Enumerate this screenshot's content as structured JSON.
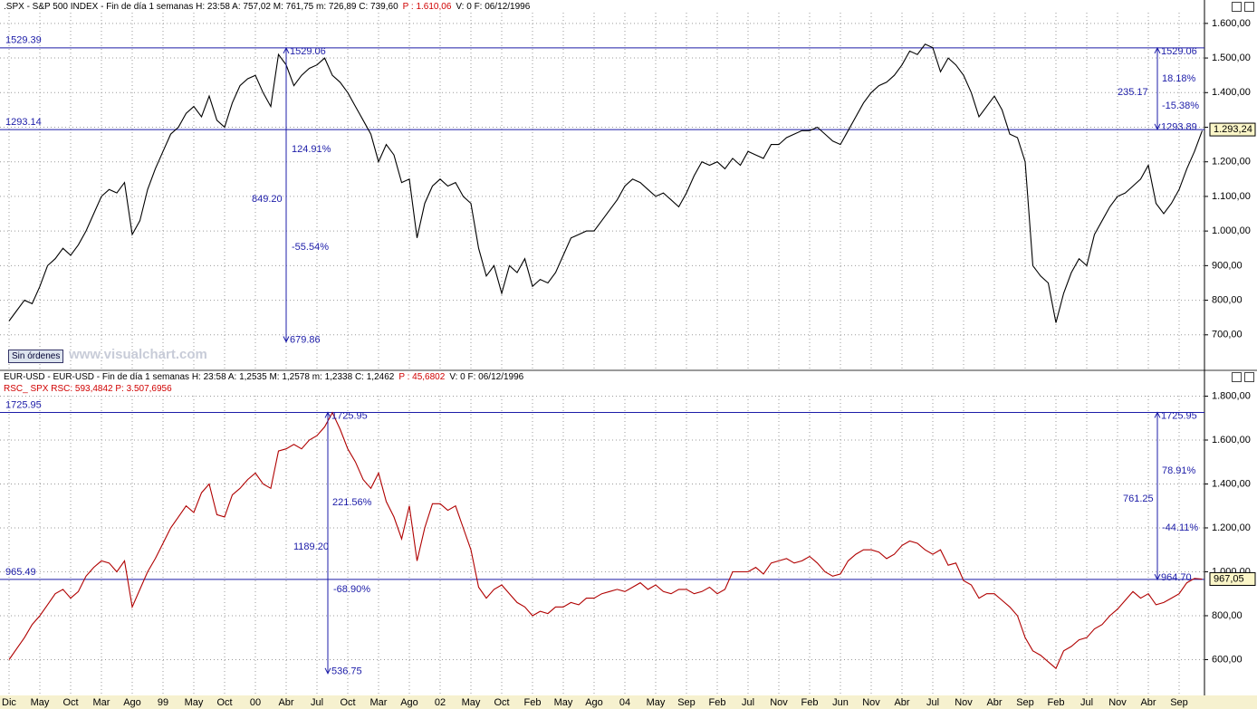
{
  "chart_data": {
    "type": "line",
    "categories": [
      "Dic",
      null,
      null,
      null,
      "May",
      null,
      null,
      null,
      "Oct",
      null,
      null,
      null,
      "Mar",
      null,
      null,
      null,
      "Ago",
      null,
      null,
      null,
      "99",
      null,
      null,
      null,
      "May",
      null,
      null,
      null,
      "Oct",
      null,
      null,
      null,
      "00",
      null,
      null,
      null,
      "Abr",
      null,
      null,
      null,
      "Jul",
      null,
      null,
      null,
      "Oct",
      null,
      null,
      null,
      "Mar",
      null,
      null,
      null,
      "Ago",
      null,
      null,
      null,
      "02",
      null,
      null,
      null,
      "May",
      null,
      null,
      null,
      "Oct",
      null,
      null,
      null,
      "Feb",
      null,
      null,
      null,
      "May",
      null,
      null,
      null,
      "Ago",
      null,
      null,
      null,
      "04",
      null,
      null,
      null,
      "May",
      null,
      null,
      null,
      "Sep",
      null,
      null,
      null,
      "Feb",
      null,
      null,
      null,
      "Jul",
      null,
      null,
      null,
      "Nov",
      null,
      null,
      null,
      "Feb",
      null,
      null,
      null,
      "Jun",
      null,
      null,
      null,
      "Nov",
      null,
      null,
      null,
      "Abr",
      null,
      null,
      null,
      "Jul",
      null,
      null,
      null,
      "Nov",
      null,
      null,
      null,
      "Abr",
      null,
      null,
      null,
      "Sep",
      null,
      null,
      null,
      "Feb",
      null,
      null,
      null,
      "Jul",
      null,
      null,
      null,
      "Nov",
      null,
      null,
      null,
      "Abr",
      null,
      null,
      null,
      "Sep",
      null,
      null,
      null
    ],
    "grid": true,
    "panels": [
      {
        "header": [
          [
            {
              "text": ".SPX - S&P 500 INDEX - Fin de día 1 semanas H: 23:58 A: 757,02 M: 761,75 m: 726,89 C: 739,60",
              "color": "#000000"
            },
            {
              "text": "P : 1.610,06",
              "color": "#d00000"
            },
            {
              "text": "V: 0 F: 06/12/1996",
              "color": "#000000"
            }
          ]
        ],
        "ylim": [
          600,
          1631
        ],
        "yticks": [
          {
            "value": 700,
            "label": "700,00"
          },
          {
            "value": 800,
            "label": "800,00"
          },
          {
            "value": 900,
            "label": "900,00"
          },
          {
            "value": 1000,
            "label": "1.000,00"
          },
          {
            "value": 1100,
            "label": "1.100,00"
          },
          {
            "value": 1200,
            "label": "1.200,00"
          },
          {
            "value": 1300,
            "label": "1.300,00"
          },
          {
            "value": 1400,
            "label": "1.400,00"
          },
          {
            "value": 1500,
            "label": "1.500,00"
          },
          {
            "value": 1600,
            "label": "1.600,00"
          }
        ],
        "series": [
          {
            "name": ".SPX",
            "color": "#000000",
            "values": [
              740,
              770,
              800,
              790,
              840,
              900,
              920,
              950,
              930,
              960,
              1000,
              1050,
              1100,
              1120,
              1110,
              1140,
              990,
              1030,
              1120,
              1180,
              1230,
              1280,
              1300,
              1340,
              1360,
              1330,
              1390,
              1320,
              1300,
              1370,
              1420,
              1440,
              1450,
              1400,
              1360,
              1510,
              1480,
              1420,
              1450,
              1470,
              1480,
              1500,
              1450,
              1430,
              1400,
              1360,
              1320,
              1280,
              1200,
              1250,
              1220,
              1140,
              1150,
              980,
              1080,
              1130,
              1150,
              1130,
              1140,
              1100,
              1080,
              950,
              870,
              900,
              820,
              900,
              880,
              920,
              840,
              860,
              850,
              880,
              930,
              980,
              990,
              1000,
              1000,
              1030,
              1060,
              1090,
              1130,
              1150,
              1140,
              1120,
              1100,
              1110,
              1090,
              1070,
              1110,
              1160,
              1200,
              1190,
              1200,
              1180,
              1210,
              1190,
              1230,
              1220,
              1210,
              1250,
              1250,
              1270,
              1280,
              1290,
              1290,
              1300,
              1280,
              1260,
              1250,
              1290,
              1330,
              1370,
              1400,
              1420,
              1430,
              1450,
              1480,
              1520,
              1510,
              1540,
              1530,
              1460,
              1500,
              1480,
              1450,
              1400,
              1330,
              1360,
              1390,
              1350,
              1280,
              1270,
              1200,
              900,
              870,
              850,
              735,
              820,
              880,
              920,
              900,
              990,
              1030,
              1070,
              1100,
              1110,
              1130,
              1150,
              1190,
              1080,
              1050,
              1080,
              1120,
              1180,
              1230,
              1290
            ]
          }
        ],
        "hlines": [
          {
            "value": 1529.39,
            "label": "1529.39"
          },
          {
            "value": 1293.14,
            "label": "1293.14"
          }
        ],
        "measures": [
          {
            "top": {
              "value": 1529.06,
              "label": "1529.06"
            },
            "bottom": {
              "value": 679.86,
              "label": "679.86"
            },
            "texts": [
              "124.91%",
              "849.20",
              "-55.54%"
            ]
          },
          {
            "top": {
              "value": 1529.06,
              "label": "1529.06"
            },
            "bottom": {
              "value": 1293.89,
              "label": "1293.89"
            },
            "texts": [
              "18.18%",
              "235.17",
              "-15.38%"
            ]
          }
        ],
        "last": {
          "value": 1293.24,
          "label": "1.293,24"
        }
      },
      {
        "header": [
          [
            {
              "text": "EUR-USD - EUR-USD - Fin de día 1 semanas H: 23:58 A: 1,2535 M: 1,2578 m: 1,2338 C: 1,2462",
              "color": "#000000"
            },
            {
              "text": "P : 45,6802",
              "color": "#d00000"
            },
            {
              "text": "V: 0 F: 06/12/1996",
              "color": "#000000"
            }
          ],
          [
            {
              "text": "RSC_ SPX RSC: 593,4842 P: 3.507,6956",
              "color": "#d00000"
            }
          ]
        ],
        "ylim": [
          437,
          1802
        ],
        "yticks": [
          {
            "value": 600,
            "label": "600,00"
          },
          {
            "value": 800,
            "label": "800,00"
          },
          {
            "value": 1000,
            "label": "1.000,00"
          },
          {
            "value": 1200,
            "label": "1.200,00"
          },
          {
            "value": 1400,
            "label": "1.400,00"
          },
          {
            "value": 1600,
            "label": "1.600,00"
          },
          {
            "value": 1800,
            "label": "1.800,00"
          }
        ],
        "series": [
          {
            "name": "RSC_ SPX",
            "color": "#b00000",
            "values": [
              600,
              650,
              700,
              760,
              800,
              850,
              900,
              920,
              880,
              910,
              980,
              1020,
              1050,
              1040,
              1000,
              1050,
              840,
              920,
              1000,
              1060,
              1130,
              1200,
              1250,
              1300,
              1270,
              1360,
              1400,
              1260,
              1250,
              1350,
              1380,
              1420,
              1450,
              1400,
              1380,
              1550,
              1560,
              1580,
              1560,
              1600,
              1620,
              1660,
              1725,
              1650,
              1560,
              1500,
              1420,
              1380,
              1450,
              1320,
              1250,
              1150,
              1300,
              1050,
              1200,
              1310,
              1310,
              1280,
              1300,
              1200,
              1100,
              930,
              880,
              920,
              940,
              900,
              860,
              840,
              800,
              820,
              810,
              840,
              840,
              860,
              850,
              880,
              880,
              900,
              910,
              920,
              910,
              930,
              950,
              920,
              940,
              910,
              900,
              920,
              920,
              900,
              910,
              930,
              900,
              920,
              1000,
              1000,
              1000,
              1020,
              990,
              1040,
              1050,
              1060,
              1040,
              1050,
              1070,
              1040,
              1000,
              980,
              990,
              1050,
              1080,
              1100,
              1100,
              1090,
              1060,
              1080,
              1120,
              1140,
              1130,
              1100,
              1080,
              1100,
              1030,
              1040,
              960,
              940,
              880,
              900,
              900,
              870,
              840,
              800,
              700,
              640,
              620,
              590,
              560,
              640,
              660,
              690,
              700,
              740,
              760,
              800,
              830,
              870,
              910,
              880,
              900,
              850,
              860,
              880,
              900,
              950,
              970,
              967
            ]
          }
        ],
        "hlines": [
          {
            "value": 1725.95,
            "label": "1725.95"
          },
          {
            "value": 965.49,
            "label": "965.49"
          }
        ],
        "measures": [
          {
            "top": {
              "value": 1725.95,
              "label": "1725.95"
            },
            "bottom": {
              "value": 536.75,
              "label": "536.75"
            },
            "texts": [
              "221.56%",
              "1189.20",
              "-68.90%"
            ]
          },
          {
            "top": {
              "value": 1725.95,
              "label": "1725.95"
            },
            "bottom": {
              "value": 964.7,
              "label": "964.70"
            },
            "texts": [
              "78.91%",
              "761.25",
              "-44.11%"
            ]
          }
        ],
        "last": {
          "value": 967.05,
          "label": "967,05"
        }
      }
    ]
  },
  "ui": {
    "button": "Sin órdenes",
    "watermark": "www.visualchart.com"
  }
}
